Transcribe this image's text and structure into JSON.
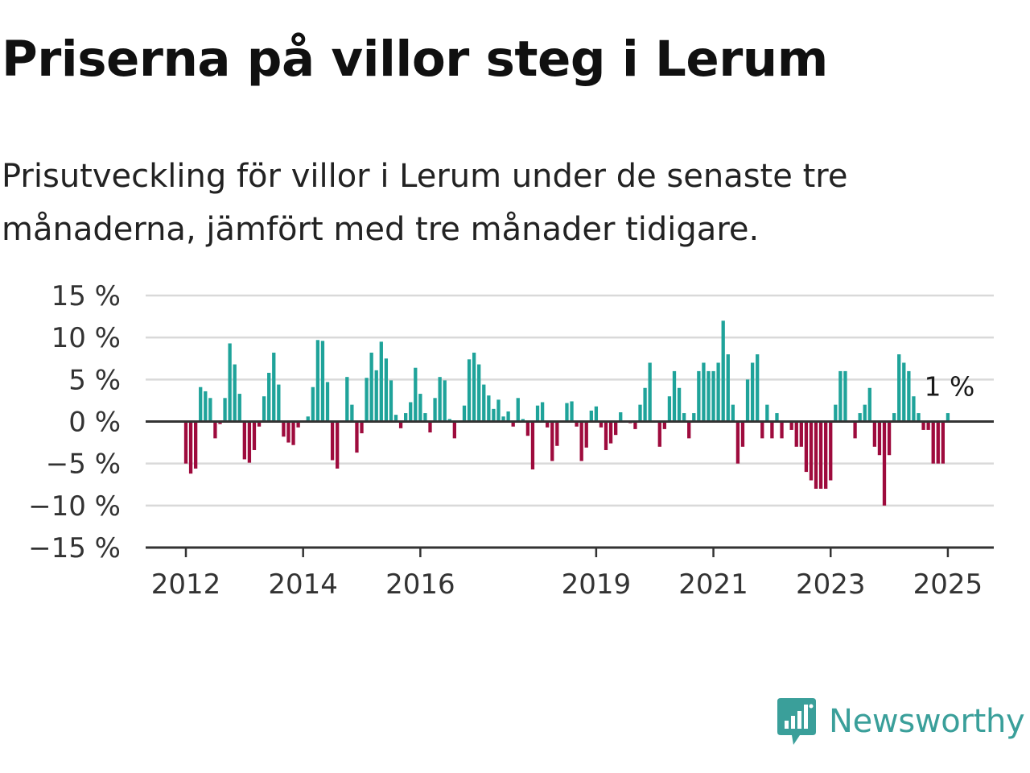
{
  "title": "Priserna på villor steg i Lerum",
  "subtitle": "Prisutveckling för villor i Lerum under de senaste tre månaderna, jämfört med tre månader tidigare.",
  "brand": "Newsworthy",
  "colors": {
    "positive": "#1fa39a",
    "negative": "#9e0b3d",
    "grid": "#d9d9d9",
    "axis": "#333333",
    "brand": "#3a9f9a"
  },
  "chart_data": {
    "type": "bar",
    "ylim": [
      -15,
      15
    ],
    "yticks": [
      15,
      10,
      5,
      0,
      -5,
      -10,
      -15
    ],
    "ytick_labels": [
      "15 %",
      "10 %",
      "5 %",
      "0 %",
      "−5 %",
      "−10 %",
      "−15 %"
    ],
    "x_start": "2012-01",
    "x_end": "2025-06",
    "xticks": [
      "2012-01",
      "2014-01",
      "2016-01",
      "2019-01",
      "2021-01",
      "2023-01",
      "2025-01"
    ],
    "xtick_labels": [
      "2012",
      "2014",
      "2016",
      "2019",
      "2021",
      "2023",
      "2025"
    ],
    "grid": true,
    "end_label": "1 %",
    "categories": [
      "2012-01",
      "2012-02",
      "2012-03",
      "2012-04",
      "2012-05",
      "2012-06",
      "2012-07",
      "2012-08",
      "2012-09",
      "2012-10",
      "2012-11",
      "2012-12",
      "2013-01",
      "2013-02",
      "2013-03",
      "2013-04",
      "2013-05",
      "2013-06",
      "2013-07",
      "2013-08",
      "2013-09",
      "2013-10",
      "2013-11",
      "2013-12",
      "2014-01",
      "2014-02",
      "2014-03",
      "2014-04",
      "2014-05",
      "2014-06",
      "2014-07",
      "2014-08",
      "2014-09",
      "2014-10",
      "2014-11",
      "2014-12",
      "2015-01",
      "2015-02",
      "2015-03",
      "2015-04",
      "2015-05",
      "2015-06",
      "2015-07",
      "2015-08",
      "2015-09",
      "2015-10",
      "2015-11",
      "2015-12",
      "2016-01",
      "2016-02",
      "2016-03",
      "2016-04",
      "2016-05",
      "2016-06",
      "2016-07",
      "2016-08",
      "2016-09",
      "2016-10",
      "2016-11",
      "2016-12",
      "2017-01",
      "2017-02",
      "2017-03",
      "2017-04",
      "2017-05",
      "2017-06",
      "2017-07",
      "2017-08",
      "2017-09",
      "2017-10",
      "2017-11",
      "2017-12",
      "2018-01",
      "2018-02",
      "2018-03",
      "2018-04",
      "2018-05",
      "2018-06",
      "2018-07",
      "2018-08",
      "2018-09",
      "2018-10",
      "2018-11",
      "2018-12",
      "2019-01",
      "2019-02",
      "2019-03",
      "2019-04",
      "2019-05",
      "2019-06",
      "2019-07",
      "2019-08",
      "2019-09",
      "2019-10",
      "2019-11",
      "2019-12",
      "2020-01",
      "2020-02",
      "2020-03",
      "2020-04",
      "2020-05",
      "2020-06",
      "2020-07",
      "2020-08",
      "2020-09",
      "2020-10",
      "2020-11",
      "2020-12",
      "2021-01",
      "2021-02",
      "2021-03",
      "2021-04",
      "2021-05",
      "2021-06",
      "2021-07",
      "2021-08",
      "2021-09",
      "2021-10",
      "2021-11",
      "2021-12",
      "2022-01",
      "2022-02",
      "2022-03",
      "2022-04",
      "2022-05",
      "2022-06",
      "2022-07",
      "2022-08",
      "2022-09",
      "2022-10",
      "2022-11",
      "2022-12",
      "2023-01",
      "2023-02",
      "2023-03",
      "2023-04",
      "2023-05",
      "2023-06",
      "2023-07",
      "2023-08",
      "2023-09",
      "2023-10",
      "2023-11",
      "2023-12",
      "2024-01",
      "2024-02",
      "2024-03",
      "2024-04",
      "2024-05",
      "2024-06",
      "2024-07",
      "2024-08",
      "2024-09",
      "2024-10",
      "2024-11",
      "2024-12",
      "2025-01"
    ],
    "values": [
      -5,
      -6.2,
      -5.6,
      4.1,
      3.6,
      2.8,
      -2,
      -0.3,
      2.8,
      9.3,
      6.8,
      3.3,
      -4.5,
      -4.9,
      -3.4,
      -0.6,
      3,
      5.8,
      8.2,
      4.4,
      -1.8,
      -2.5,
      -2.8,
      -0.7,
      0,
      0.6,
      4.1,
      9.7,
      9.6,
      4.7,
      -4.6,
      -5.6,
      0,
      5.3,
      2,
      -3.7,
      -1.4,
      5.2,
      8.2,
      6.1,
      9.5,
      7.5,
      4.9,
      0.8,
      -0.8,
      1,
      2.3,
      6.4,
      3.3,
      1,
      -1.3,
      2.8,
      5.3,
      4.9,
      0.3,
      -2,
      0,
      1.9,
      7.4,
      8.2,
      6.8,
      4.4,
      3.1,
      1.5,
      2.6,
      0.6,
      1.2,
      -0.6,
      2.8,
      0.3,
      -1.7,
      -5.7,
      1.9,
      2.3,
      -0.7,
      -4.7,
      -2.9,
      0,
      2.2,
      2.4,
      -0.6,
      -4.7,
      -3.1,
      1.3,
      1.8,
      -0.7,
      -3.4,
      -2.6,
      -1.6,
      1.1,
      0,
      -0.2,
      -0.9,
      2,
      4,
      7,
      0,
      -3,
      -0.9,
      3,
      6,
      4,
      1,
      -2,
      1,
      6,
      7,
      6,
      6,
      7,
      12,
      8,
      2,
      -5,
      -3,
      5,
      7,
      8,
      -2,
      2,
      -2,
      1,
      -2,
      0,
      -1,
      -3,
      -3,
      -6,
      -7,
      -8,
      -8,
      -8,
      -7,
      2,
      6,
      6,
      0,
      -2,
      1,
      2,
      4,
      -3,
      -4,
      -10,
      -4,
      1,
      8,
      7,
      6,
      3,
      1,
      -1,
      -1,
      -5,
      -5,
      -5,
      1
    ]
  }
}
